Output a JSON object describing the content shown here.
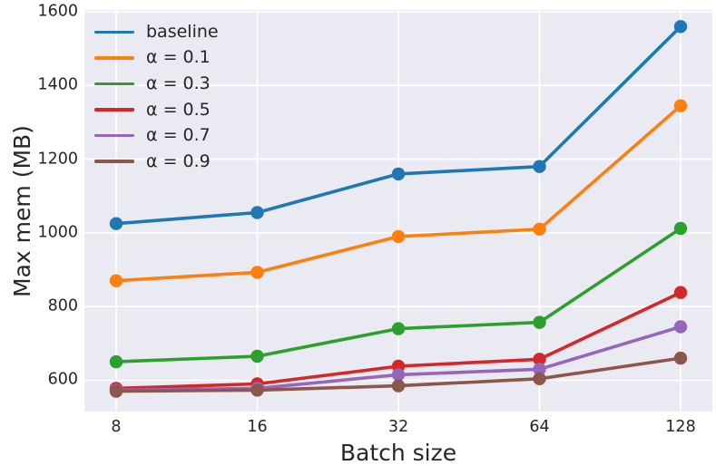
{
  "figure": {
    "background": "#ffffff",
    "plot_background": "#eaeaf2",
    "grid_color": "#ffffff",
    "text_color": "#262626"
  },
  "chart_data": {
    "type": "line",
    "title": "",
    "xlabel": "Batch size",
    "ylabel": "Max mem (MB)",
    "categories": [
      "8",
      "16",
      "32",
      "64",
      "128"
    ],
    "yticks": [
      600,
      800,
      1000,
      1200,
      1400,
      1600
    ],
    "ylim": [
      515,
      1605
    ],
    "grid": true,
    "legend_position": "upper-left",
    "marker": "circle",
    "series": [
      {
        "name": "baseline",
        "color": "#1f77b4",
        "values": [
          1025,
          1055,
          1160,
          1180,
          1560
        ]
      },
      {
        "name": "α = 0.1",
        "color": "#ff7f0e",
        "values": [
          870,
          893,
          990,
          1010,
          1345
        ]
      },
      {
        "name": "α = 0.3",
        "color": "#2ca02c",
        "values": [
          650,
          665,
          740,
          757,
          1012
        ]
      },
      {
        "name": "α = 0.5",
        "color": "#d62728",
        "values": [
          578,
          590,
          638,
          657,
          838
        ]
      },
      {
        "name": "α = 0.7",
        "color": "#9467bd",
        "values": [
          573,
          578,
          615,
          630,
          745
        ]
      },
      {
        "name": "α = 0.9",
        "color": "#8c564b",
        "values": [
          570,
          573,
          585,
          604,
          660
        ]
      }
    ]
  }
}
